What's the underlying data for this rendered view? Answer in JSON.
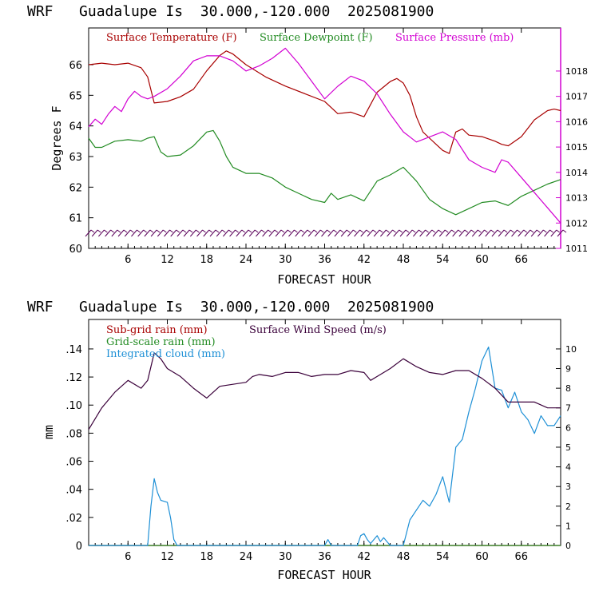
{
  "chart_data": [
    {
      "type": "line",
      "title": "WRF   Guadalupe Is  30.000,-120.000  2025081900",
      "xlabel": "FORECAST HOUR",
      "ylabel": "Degrees F",
      "y2label": "",
      "xlim": [
        0,
        72
      ],
      "ylim": [
        60,
        67.2
      ],
      "y2lim": [
        1011,
        1019.7
      ],
      "xticks": [
        "6",
        "12",
        "18",
        "24",
        "30",
        "36",
        "42",
        "48",
        "54",
        "60",
        "66"
      ],
      "yticks": [
        "60",
        "61",
        "62",
        "63",
        "64",
        "65",
        "66"
      ],
      "y2ticks": [
        "1011",
        "1012",
        "1013",
        "1014",
        "1015",
        "1016",
        "1017",
        "1018"
      ],
      "wind_barbs": "true",
      "series": [
        {
          "name": "Surface Temperature (F)",
          "axis": "left",
          "color": "#a80000",
          "x": [
            0,
            2,
            4,
            6,
            8,
            9,
            10,
            12,
            14,
            16,
            18,
            20,
            21,
            22,
            24,
            27,
            30,
            33,
            36,
            38,
            40,
            42,
            43,
            44,
            46,
            47,
            48,
            49,
            50,
            51,
            52,
            53,
            54,
            55,
            56,
            57,
            58,
            60,
            62,
            63,
            64,
            66,
            68,
            70,
            71,
            72
          ],
          "values": [
            66.0,
            66.05,
            66.0,
            66.05,
            65.9,
            65.6,
            64.75,
            64.8,
            64.95,
            65.2,
            65.8,
            66.3,
            66.45,
            66.35,
            66.0,
            65.6,
            65.3,
            65.05,
            64.8,
            64.4,
            64.45,
            64.3,
            64.7,
            65.1,
            65.45,
            65.55,
            65.4,
            65.0,
            64.3,
            63.8,
            63.6,
            63.4,
            63.2,
            63.1,
            63.8,
            63.9,
            63.7,
            63.65,
            63.5,
            63.4,
            63.35,
            63.65,
            64.2,
            64.5,
            64.55,
            64.5
          ]
        },
        {
          "name": "Surface Dewpoint (F)",
          "axis": "left",
          "color": "#228b22",
          "x": [
            0,
            1,
            2,
            4,
            6,
            8,
            9,
            10,
            11,
            12,
            14,
            16,
            18,
            19,
            20,
            21,
            22,
            24,
            26,
            28,
            30,
            32,
            34,
            36,
            37,
            38,
            40,
            42,
            44,
            46,
            48,
            50,
            52,
            54,
            56,
            58,
            60,
            62,
            64,
            66,
            68,
            70,
            72
          ],
          "values": [
            63.6,
            63.3,
            63.3,
            63.5,
            63.55,
            63.5,
            63.6,
            63.65,
            63.15,
            63.0,
            63.05,
            63.35,
            63.8,
            63.85,
            63.5,
            63.0,
            62.65,
            62.45,
            62.45,
            62.3,
            62.0,
            61.8,
            61.6,
            61.5,
            61.8,
            61.6,
            61.75,
            61.55,
            62.2,
            62.4,
            62.65,
            62.2,
            61.6,
            61.3,
            61.1,
            61.3,
            61.5,
            61.55,
            61.4,
            61.7,
            61.9,
            62.1,
            62.25
          ]
        },
        {
          "name": "Surface Pressure (mb)",
          "axis": "right",
          "color": "#d200d2",
          "x": [
            0,
            1,
            2,
            3,
            4,
            5,
            6,
            7,
            8,
            9,
            10,
            12,
            14,
            16,
            18,
            20,
            22,
            24,
            26,
            28,
            30,
            32,
            34,
            36,
            38,
            40,
            42,
            44,
            46,
            48,
            50,
            52,
            54,
            56,
            58,
            60,
            62,
            63,
            64,
            66,
            68,
            70,
            72
          ],
          "values": [
            1015.8,
            1016.1,
            1015.9,
            1016.3,
            1016.6,
            1016.4,
            1016.9,
            1017.2,
            1017.0,
            1016.9,
            1017.0,
            1017.3,
            1017.8,
            1018.4,
            1018.6,
            1018.6,
            1018.4,
            1018.0,
            1018.2,
            1018.5,
            1018.9,
            1018.3,
            1017.6,
            1016.9,
            1017.4,
            1017.8,
            1017.6,
            1017.1,
            1016.3,
            1015.6,
            1015.2,
            1015.4,
            1015.6,
            1015.3,
            1014.5,
            1014.2,
            1014.0,
            1014.5,
            1014.4,
            1013.8,
            1013.2,
            1012.6,
            1012.0
          ]
        }
      ]
    },
    {
      "type": "line",
      "title": "WRF   Guadalupe Is  30.000,-120.000  2025081900",
      "xlabel": "FORECAST HOUR",
      "ylabel": "mm",
      "y2label": "",
      "xlim": [
        0,
        72
      ],
      "ylim": [
        0,
        0.161
      ],
      "y2lim": [
        0,
        11.5
      ],
      "xticks": [
        "6",
        "12",
        "18",
        "24",
        "30",
        "36",
        "42",
        "48",
        "54",
        "60",
        "66"
      ],
      "yticks": [
        "0",
        ".02",
        ".04",
        ".06",
        ".08",
        ".10",
        ".12",
        ".14"
      ],
      "y2ticks": [
        "0",
        "1",
        "2",
        "3",
        "4",
        "5",
        "6",
        "7",
        "8",
        "9",
        "10"
      ],
      "series": [
        {
          "name": "Sub-grid rain (mm)",
          "axis": "left",
          "color": "#a80000",
          "x": [
            0,
            72
          ],
          "values": [
            0,
            0
          ]
        },
        {
          "name": "Grid-scale rain (mm)",
          "axis": "left",
          "color": "#228b22",
          "x": [
            0,
            72
          ],
          "values": [
            0,
            0
          ]
        },
        {
          "name": "Integrated cloud (mm)",
          "axis": "right",
          "color": "#1e90d6",
          "x": [
            0,
            9,
            9.5,
            10,
            10.5,
            11,
            12,
            12.5,
            13,
            13.5,
            14,
            36,
            36.5,
            37,
            41,
            41.5,
            42,
            42.5,
            43,
            44,
            44.5,
            45,
            45.5,
            46,
            48,
            49,
            50,
            51,
            52,
            53,
            54,
            55,
            56,
            57,
            58,
            59,
            60,
            61,
            62,
            63,
            64,
            65,
            66,
            67,
            68,
            69,
            70,
            71,
            72
          ],
          "values": [
            0,
            0,
            2.0,
            3.4,
            2.7,
            2.3,
            2.2,
            1.4,
            0.3,
            0.0,
            0,
            0,
            0.3,
            0,
            0,
            0.5,
            0.6,
            0.3,
            0.1,
            0.5,
            0.2,
            0.4,
            0.2,
            0,
            0,
            1.3,
            1.8,
            2.3,
            2.0,
            2.6,
            3.5,
            2.2,
            5.0,
            5.4,
            6.8,
            8.0,
            9.4,
            10.1,
            8.0,
            7.9,
            7.0,
            7.8,
            6.8,
            6.4,
            5.7,
            6.6,
            6.1,
            6.1,
            6.6
          ]
        },
        {
          "name": "Surface Wind Speed (m/s)",
          "axis": "right",
          "color": "#3a003a",
          "x": [
            0,
            2,
            4,
            6,
            8,
            9,
            10,
            11,
            12,
            14,
            16,
            18,
            20,
            22,
            24,
            25,
            26,
            28,
            30,
            32,
            34,
            36,
            38,
            40,
            42,
            43,
            44,
            46,
            48,
            50,
            52,
            54,
            56,
            58,
            60,
            62,
            64,
            66,
            68,
            70,
            72
          ],
          "values": [
            5.9,
            7.0,
            7.8,
            8.4,
            8.0,
            8.4,
            9.8,
            9.5,
            9.0,
            8.6,
            8.0,
            7.5,
            8.1,
            8.2,
            8.3,
            8.6,
            8.7,
            8.6,
            8.8,
            8.8,
            8.6,
            8.7,
            8.7,
            8.9,
            8.8,
            8.4,
            8.6,
            9.0,
            9.5,
            9.1,
            8.8,
            8.7,
            8.9,
            8.9,
            8.5,
            8.0,
            7.3,
            7.3,
            7.3,
            7.0,
            7.0
          ]
        }
      ]
    }
  ]
}
